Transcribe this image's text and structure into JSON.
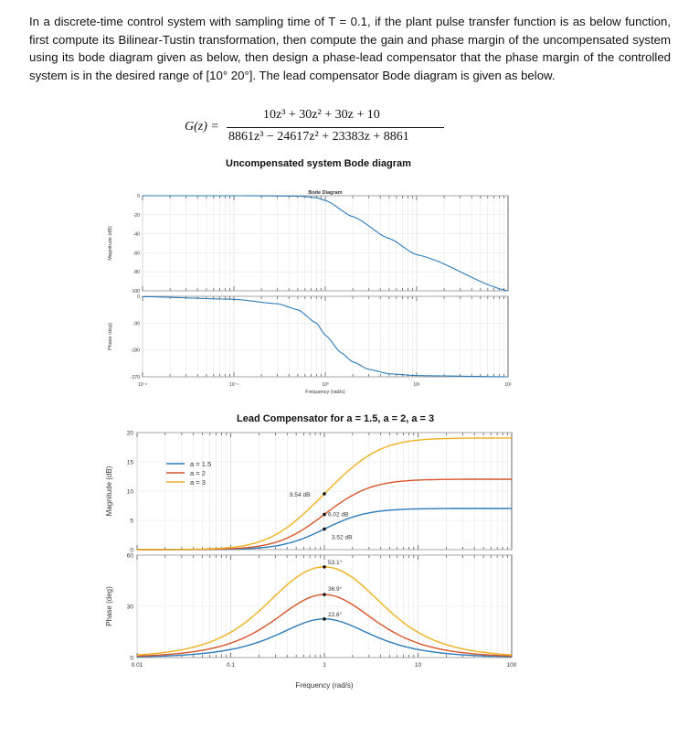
{
  "question": {
    "text": "In a discrete-time control system with sampling time of T = 0.1, if the plant pulse transfer function is as below function, first compute its Bilinear-Tustin transformation, then compute the gain and phase margin of the uncompensated system using its bode diagram given as below, then design a phase-lead compensator that the phase margin of the controlled system is in the desired range of [10° 20°]. The lead compensator Bode diagram is given as below."
  },
  "transfer_function": {
    "lhs": "G(z) =",
    "numerator": "10z³ + 30z² + 30z + 10",
    "denominator": "8861z³ − 24617z² + 23383z + 8861"
  },
  "figure1": {
    "caption": "Uncompensated system Bode diagram"
  },
  "figure2": {
    "caption": "Lead Compensator for a = 1.5, a = 2, a = 3"
  },
  "colors": {
    "blue": "#2b7bba",
    "red": "#d9542b",
    "yellow": "#edb120",
    "grid": "#e3e3e3",
    "axis": "#444444"
  },
  "chart_data": [
    {
      "type": "line",
      "title": "Bode Diagram",
      "xlabel": "Frequency (rad/s)",
      "xscale": "log",
      "xlim": [
        0.01,
        100
      ],
      "x_tick_labels": [
        "10⁻²",
        "10⁻¹",
        "10⁰",
        "10¹",
        "10²"
      ],
      "panels": [
        {
          "ylabel": "Magnitude (dB)",
          "ylim": [
            -100,
            0
          ],
          "y_tick_labels": [
            "0",
            "-20",
            "-40",
            "-60",
            "-80",
            "-100"
          ],
          "series": [
            {
              "x": [
                0.01,
                0.1,
                0.5,
                0.8,
                1,
                2,
                5,
                10,
                100
              ],
              "y": [
                0,
                0,
                -0.4,
                -2,
                -5,
                -22,
                -45,
                -62,
                -100
              ]
            }
          ]
        },
        {
          "ylabel": "Phase (deg)",
          "ylim": [
            -270,
            0
          ],
          "y_tick_labels": [
            "0",
            "-90",
            "-180",
            "-270"
          ],
          "series": [
            {
              "x": [
                0.01,
                0.1,
                0.3,
                0.5,
                0.8,
                1,
                1.5,
                2,
                3,
                5,
                10,
                100
              ],
              "y": [
                -1,
                -10,
                -25,
                -45,
                -90,
                -130,
                -190,
                -220,
                -245,
                -260,
                -266,
                -270
              ]
            }
          ]
        }
      ]
    },
    {
      "type": "line",
      "title": "Lead Compensator for a = 1.5, a = 2, a = 3",
      "xlabel": "Frequency (rad/s)",
      "xscale": "log",
      "xlim": [
        0.01,
        100
      ],
      "x_tick_labels": [
        "0.01",
        "0.1",
        "1",
        "10",
        "100"
      ],
      "legend": {
        "placement": "top-left",
        "entries": [
          "a = 1.5",
          "a = 2",
          "a = 3"
        ]
      },
      "panels": [
        {
          "ylabel": "Magnitude (dB)",
          "ylim": [
            0,
            20
          ],
          "y_tick_labels": [
            "0",
            "5",
            "10",
            "15",
            "20"
          ],
          "annotations": [
            {
              "text": "9.54 dB",
              "x": 1,
              "y": 9.54
            },
            {
              "text": "6.02 dB",
              "x": 1,
              "y": 6.02
            },
            {
              "text": "3.52 dB",
              "x": 1,
              "y": 3.52
            }
          ],
          "series": [
            {
              "name": "a = 1.5",
              "gain_db": 7.04
            },
            {
              "name": "a = 2",
              "gain_db": 12.04
            },
            {
              "name": "a = 3",
              "gain_db": 19.08
            }
          ]
        },
        {
          "ylabel": "Phase (deg)",
          "ylim": [
            0,
            60
          ],
          "y_tick_labels": [
            "0",
            "30",
            "60"
          ],
          "annotations": [
            {
              "text": "53.1°",
              "x": 1,
              "y": 53.1
            },
            {
              "text": "36.9°",
              "x": 1,
              "y": 36.9
            },
            {
              "text": "22.6°",
              "x": 1,
              "y": 22.6
            }
          ],
          "series": [
            {
              "name": "a = 1.5",
              "peak_deg": 22.6
            },
            {
              "name": "a = 2",
              "peak_deg": 36.9
            },
            {
              "name": "a = 3",
              "peak_deg": 53.1
            }
          ]
        }
      ]
    }
  ]
}
